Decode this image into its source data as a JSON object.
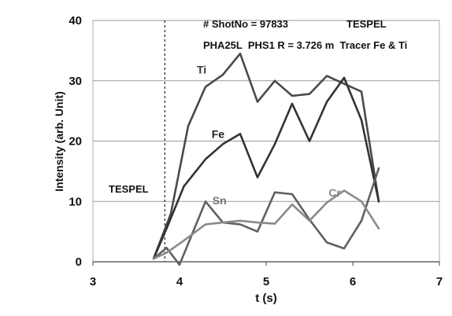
{
  "chart_data": {
    "type": "line",
    "xlabel": "t (s)",
    "ylabel": "Intensity (arb. Unit)",
    "xlim": [
      3,
      7
    ],
    "ylim": [
      0,
      40
    ],
    "x_ticks": [
      "3",
      "4",
      "5",
      "6",
      "7"
    ],
    "y_ticks": [
      "0",
      "10",
      "20",
      "30",
      "40"
    ],
    "grid": "horizontal",
    "header_line1_left": "# ShotNo = 97833",
    "header_line1_right": "TESPEL",
    "header_line2": "PHA25L  PHS1 R = 3.726 m  Tracer Fe & Ti",
    "vline": {
      "x": 3.83,
      "label": "TESPEL"
    },
    "series": [
      {
        "name": "Ti",
        "color": "#4a4a4a",
        "x": [
          3.7,
          3.9,
          4.1,
          4.3,
          4.5,
          4.7,
          4.9,
          5.1,
          5.3,
          5.5,
          5.7,
          5.9,
          6.1,
          6.3
        ],
        "y": [
          0.5,
          8.0,
          22.5,
          29.0,
          31.0,
          34.5,
          26.5,
          30.0,
          27.5,
          27.8,
          30.8,
          29.5,
          28.2,
          10.0
        ]
      },
      {
        "name": "Fe",
        "color": "#333333",
        "x": [
          3.7,
          3.85,
          4.05,
          4.3,
          4.5,
          4.7,
          4.9,
          5.1,
          5.3,
          5.5,
          5.7,
          5.9,
          6.1,
          6.3
        ],
        "y": [
          0.5,
          5.5,
          12.5,
          17.0,
          19.5,
          21.2,
          14.0,
          19.5,
          26.2,
          20.0,
          26.5,
          30.5,
          23.5,
          10.0
        ]
      },
      {
        "name": "Sn",
        "color": "#606060",
        "x": [
          3.7,
          3.85,
          4.0,
          4.3,
          4.5,
          4.7,
          4.9,
          5.1,
          5.3,
          5.5,
          5.7,
          5.9,
          6.1,
          6.3
        ],
        "y": [
          0.5,
          2.3,
          -0.5,
          10.0,
          6.5,
          6.2,
          5.0,
          11.5,
          11.2,
          7.0,
          3.2,
          2.2,
          6.8,
          15.5
        ]
      },
      {
        "name": "Cr",
        "color": "#8a8a8a",
        "x": [
          3.7,
          3.85,
          4.05,
          4.3,
          4.5,
          4.7,
          4.9,
          5.1,
          5.3,
          5.5,
          5.7,
          5.9,
          6.1,
          6.3
        ],
        "y": [
          0.5,
          1.5,
          3.5,
          6.2,
          6.5,
          6.8,
          6.5,
          6.3,
          9.5,
          6.8,
          9.8,
          11.8,
          10.0,
          5.5
        ]
      }
    ],
    "series_labels": [
      {
        "name": "Ti",
        "x": 4.2,
        "y": 31.2,
        "color": "#3a3a3a"
      },
      {
        "name": "Fe",
        "x": 4.37,
        "y": 20.5,
        "color": "#222222"
      },
      {
        "name": "Sn",
        "x": 4.38,
        "y": 9.5,
        "color": "#777777"
      },
      {
        "name": "Cr",
        "x": 5.72,
        "y": 10.8,
        "color": "#8a8a8a"
      }
    ]
  }
}
